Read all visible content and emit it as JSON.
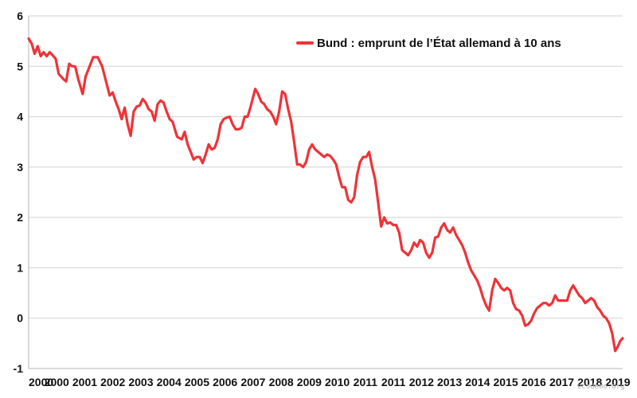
{
  "chart_data": {
    "type": "line",
    "title": "",
    "xlabel": "",
    "ylabel": "",
    "ylim": [
      -1,
      6
    ],
    "yticks": [
      -1,
      0,
      1,
      2,
      3,
      4,
      5,
      6
    ],
    "xlim": [
      2000.0,
      2019.8
    ],
    "xtick_labels": [
      "2000",
      "2000",
      "2001",
      "2002",
      "2003",
      "2004",
      "2005",
      "2006",
      "2007",
      "2008",
      "2009",
      "2010",
      "2011",
      "2011",
      "2012",
      "2013",
      "2014",
      "2015",
      "2016",
      "2017",
      "2018",
      "2019"
    ],
    "grid": true,
    "legend": {
      "position": "top-right"
    },
    "series": [
      {
        "name": "Bund : emprunt de l’État allemand à 10 ans",
        "color": "#ee3338",
        "points": [
          [
            2000.0,
            5.55
          ],
          [
            2000.1,
            5.45
          ],
          [
            2000.2,
            5.25
          ],
          [
            2000.3,
            5.4
          ],
          [
            2000.4,
            5.2
          ],
          [
            2000.5,
            5.28
          ],
          [
            2000.6,
            5.2
          ],
          [
            2000.7,
            5.28
          ],
          [
            2000.8,
            5.22
          ],
          [
            2000.9,
            5.15
          ],
          [
            2001.0,
            4.85
          ],
          [
            2001.15,
            4.75
          ],
          [
            2001.25,
            4.7
          ],
          [
            2001.35,
            5.05
          ],
          [
            2001.45,
            5.0
          ],
          [
            2001.55,
            5.0
          ],
          [
            2001.65,
            4.75
          ],
          [
            2001.8,
            4.45
          ],
          [
            2001.9,
            4.8
          ],
          [
            2002.0,
            4.95
          ],
          [
            2002.15,
            5.18
          ],
          [
            2002.3,
            5.18
          ],
          [
            2002.45,
            5.0
          ],
          [
            2002.6,
            4.65
          ],
          [
            2002.7,
            4.42
          ],
          [
            2002.8,
            4.48
          ],
          [
            2002.9,
            4.3
          ],
          [
            2003.0,
            4.15
          ],
          [
            2003.1,
            3.95
          ],
          [
            2003.2,
            4.18
          ],
          [
            2003.3,
            3.85
          ],
          [
            2003.4,
            3.62
          ],
          [
            2003.5,
            4.1
          ],
          [
            2003.6,
            4.2
          ],
          [
            2003.7,
            4.22
          ],
          [
            2003.8,
            4.35
          ],
          [
            2003.9,
            4.28
          ],
          [
            2004.0,
            4.15
          ],
          [
            2004.1,
            4.1
          ],
          [
            2004.2,
            3.92
          ],
          [
            2004.3,
            4.25
          ],
          [
            2004.4,
            4.32
          ],
          [
            2004.5,
            4.28
          ],
          [
            2004.6,
            4.1
          ],
          [
            2004.7,
            3.95
          ],
          [
            2004.8,
            3.9
          ],
          [
            2004.95,
            3.6
          ],
          [
            2005.1,
            3.55
          ],
          [
            2005.2,
            3.7
          ],
          [
            2005.3,
            3.45
          ],
          [
            2005.4,
            3.3
          ],
          [
            2005.5,
            3.15
          ],
          [
            2005.6,
            3.2
          ],
          [
            2005.7,
            3.2
          ],
          [
            2005.8,
            3.08
          ],
          [
            2005.9,
            3.25
          ],
          [
            2006.0,
            3.45
          ],
          [
            2006.1,
            3.35
          ],
          [
            2006.2,
            3.38
          ],
          [
            2006.3,
            3.55
          ],
          [
            2006.4,
            3.85
          ],
          [
            2006.5,
            3.95
          ],
          [
            2006.6,
            3.98
          ],
          [
            2006.7,
            4.0
          ],
          [
            2006.8,
            3.85
          ],
          [
            2006.9,
            3.75
          ],
          [
            2007.0,
            3.75
          ],
          [
            2007.1,
            3.78
          ],
          [
            2007.2,
            4.0
          ],
          [
            2007.3,
            4.0
          ],
          [
            2007.4,
            4.2
          ],
          [
            2007.55,
            4.55
          ],
          [
            2007.65,
            4.45
          ],
          [
            2007.75,
            4.3
          ],
          [
            2007.85,
            4.25
          ],
          [
            2007.95,
            4.15
          ],
          [
            2008.05,
            4.1
          ],
          [
            2008.15,
            4.0
          ],
          [
            2008.25,
            3.85
          ],
          [
            2008.35,
            4.1
          ],
          [
            2008.45,
            4.5
          ],
          [
            2008.55,
            4.45
          ],
          [
            2008.65,
            4.15
          ],
          [
            2008.75,
            3.9
          ],
          [
            2008.85,
            3.5
          ],
          [
            2008.95,
            3.05
          ],
          [
            2009.05,
            3.05
          ],
          [
            2009.15,
            3.0
          ],
          [
            2009.25,
            3.1
          ],
          [
            2009.35,
            3.35
          ],
          [
            2009.45,
            3.45
          ],
          [
            2009.55,
            3.35
          ],
          [
            2009.65,
            3.3
          ],
          [
            2009.75,
            3.25
          ],
          [
            2009.85,
            3.2
          ],
          [
            2009.95,
            3.25
          ],
          [
            2010.05,
            3.22
          ],
          [
            2010.15,
            3.15
          ],
          [
            2010.25,
            3.05
          ],
          [
            2010.35,
            2.8
          ],
          [
            2010.45,
            2.6
          ],
          [
            2010.55,
            2.6
          ],
          [
            2010.65,
            2.35
          ],
          [
            2010.75,
            2.3
          ],
          [
            2010.85,
            2.4
          ],
          [
            2010.95,
            2.85
          ],
          [
            2011.05,
            3.1
          ],
          [
            2011.15,
            3.2
          ],
          [
            2011.25,
            3.2
          ],
          [
            2011.35,
            3.3
          ],
          [
            2011.45,
            3.0
          ],
          [
            2011.55,
            2.75
          ],
          [
            2011.65,
            2.3
          ],
          [
            2011.75,
            1.82
          ],
          [
            2011.85,
            2.0
          ],
          [
            2011.95,
            1.88
          ],
          [
            2012.05,
            1.9
          ],
          [
            2012.15,
            1.85
          ],
          [
            2012.25,
            1.85
          ],
          [
            2012.35,
            1.7
          ],
          [
            2012.45,
            1.35
          ],
          [
            2012.55,
            1.3
          ],
          [
            2012.65,
            1.25
          ],
          [
            2012.75,
            1.35
          ],
          [
            2012.85,
            1.5
          ],
          [
            2012.95,
            1.42
          ],
          [
            2013.05,
            1.55
          ],
          [
            2013.15,
            1.5
          ],
          [
            2013.25,
            1.3
          ],
          [
            2013.35,
            1.2
          ],
          [
            2013.45,
            1.3
          ],
          [
            2013.55,
            1.6
          ],
          [
            2013.65,
            1.62
          ],
          [
            2013.75,
            1.8
          ],
          [
            2013.85,
            1.88
          ],
          [
            2013.95,
            1.75
          ],
          [
            2014.05,
            1.7
          ],
          [
            2014.15,
            1.8
          ],
          [
            2014.25,
            1.65
          ],
          [
            2014.35,
            1.55
          ],
          [
            2014.45,
            1.45
          ],
          [
            2014.55,
            1.3
          ],
          [
            2014.65,
            1.1
          ],
          [
            2014.75,
            0.95
          ],
          [
            2014.85,
            0.85
          ],
          [
            2014.95,
            0.75
          ],
          [
            2015.05,
            0.6
          ],
          [
            2015.15,
            0.4
          ],
          [
            2015.25,
            0.25
          ],
          [
            2015.35,
            0.15
          ],
          [
            2015.45,
            0.55
          ],
          [
            2015.55,
            0.78
          ],
          [
            2015.65,
            0.7
          ],
          [
            2015.75,
            0.6
          ],
          [
            2015.85,
            0.55
          ],
          [
            2015.95,
            0.6
          ],
          [
            2016.05,
            0.55
          ],
          [
            2016.15,
            0.3
          ],
          [
            2016.25,
            0.18
          ],
          [
            2016.35,
            0.15
          ],
          [
            2016.45,
            0.05
          ],
          [
            2016.55,
            -0.15
          ],
          [
            2016.65,
            -0.12
          ],
          [
            2016.75,
            -0.05
          ],
          [
            2016.85,
            0.1
          ],
          [
            2016.95,
            0.2
          ],
          [
            2017.05,
            0.25
          ],
          [
            2017.15,
            0.3
          ],
          [
            2017.25,
            0.3
          ],
          [
            2017.35,
            0.25
          ],
          [
            2017.45,
            0.3
          ],
          [
            2017.55,
            0.45
          ],
          [
            2017.65,
            0.35
          ],
          [
            2017.75,
            0.35
          ],
          [
            2017.85,
            0.35
          ],
          [
            2017.95,
            0.35
          ],
          [
            2018.05,
            0.55
          ],
          [
            2018.15,
            0.65
          ],
          [
            2018.25,
            0.55
          ],
          [
            2018.35,
            0.45
          ],
          [
            2018.45,
            0.4
          ],
          [
            2018.55,
            0.3
          ],
          [
            2018.65,
            0.35
          ],
          [
            2018.75,
            0.4
          ],
          [
            2018.85,
            0.35
          ],
          [
            2018.95,
            0.22
          ],
          [
            2019.05,
            0.15
          ],
          [
            2019.15,
            0.05
          ],
          [
            2019.25,
            0.0
          ],
          [
            2019.35,
            -0.1
          ],
          [
            2019.45,
            -0.3
          ],
          [
            2019.55,
            -0.65
          ],
          [
            2019.65,
            -0.55
          ],
          [
            2019.72,
            -0.45
          ],
          [
            2019.8,
            -0.4
          ]
        ]
      }
    ]
  },
  "watermark": "ecodemo.org"
}
